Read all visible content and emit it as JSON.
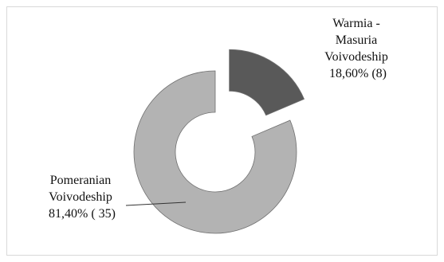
{
  "chart_data": {
    "type": "pie",
    "variant": "donut-exploded",
    "title": "",
    "legend": "none",
    "slices": [
      {
        "label_lines": [
          "Warmia -",
          "Masuria",
          "Voivodeship",
          "18,60%  (8)"
        ],
        "name": "Warmia - Masuria Voivodeship",
        "percent": 18.6,
        "count": 8,
        "color": "#595959",
        "exploded": true
      },
      {
        "label_lines": [
          "Pomeranian",
          "Voivodeship",
          "81,40% ( 35)"
        ],
        "name": "Pomeranian Voivodeship",
        "percent": 81.4,
        "count": 35,
        "color": "#b3b3b3",
        "exploded": false
      }
    ]
  }
}
